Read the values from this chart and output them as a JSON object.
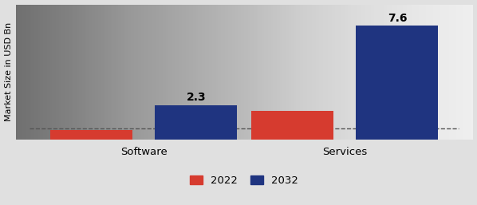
{
  "categories": [
    "Software",
    "Services"
  ],
  "values_2022": [
    0.65,
    1.9
  ],
  "values_2032": [
    2.3,
    7.6
  ],
  "bar_color_2022": "#d63b2f",
  "bar_color_2032": "#1f3480",
  "bar_width": 0.18,
  "ylabel": "Market Size in USD Bn",
  "label_2022": "2022",
  "label_2032": "2032",
  "annot_2032": [
    "2.3",
    "7.6"
  ],
  "background_color": "#e0e0e0",
  "ylim": [
    0,
    9.0
  ],
  "group_centers": [
    0.28,
    0.72
  ],
  "xlim": [
    0.0,
    1.0
  ]
}
